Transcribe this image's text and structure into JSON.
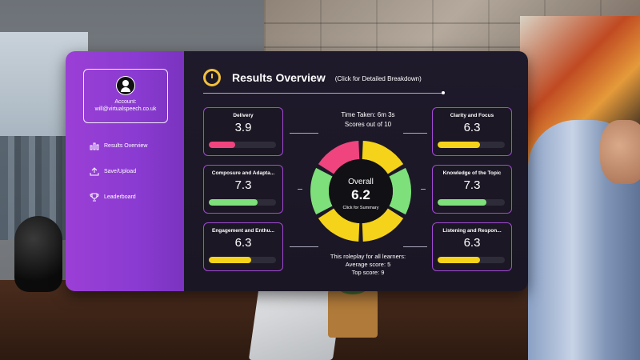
{
  "panel": {
    "account": {
      "label": "Account:",
      "email": "will@virtualspeech.co.uk"
    },
    "nav": [
      {
        "label": "Results Overview",
        "icon": "bar-chart-icon"
      },
      {
        "label": "Save/Upload",
        "icon": "upload-icon"
      },
      {
        "label": "Leaderboard",
        "icon": "trophy-icon"
      }
    ],
    "header": {
      "title": "Results Overview",
      "subtitle": "(Click for Detailed Breakdown)",
      "icon": "stopwatch-icon"
    },
    "summary": {
      "time_taken": "Time Taken: 6m 3s",
      "scores_out_of": "Scores out of 10"
    },
    "overall": {
      "label": "Overall",
      "value": "6.2",
      "link": "Click for Summary"
    },
    "footer": {
      "line1": "This roleplay for all learners:",
      "line2": "Average score: 5",
      "line3": "Top score: 9"
    },
    "cards": [
      {
        "title": "Delivery",
        "value": "3.9",
        "fraction": 0.39,
        "color": "#f0447f"
      },
      {
        "title": "Composure and Adapta...",
        "value": "7.3",
        "fraction": 0.73,
        "color": "#7ee07a"
      },
      {
        "title": "Engagement and Enthu...",
        "value": "6.3",
        "fraction": 0.63,
        "color": "#f5d31a"
      },
      {
        "title": "Clarity and Focus",
        "value": "6.3",
        "fraction": 0.63,
        "color": "#f5d31a"
      },
      {
        "title": "Knowledge of the Topic",
        "value": "7.3",
        "fraction": 0.73,
        "color": "#7ee07a"
      },
      {
        "title": "Listening and Respon...",
        "value": "6.3",
        "fraction": 0.63,
        "color": "#f5d31a"
      }
    ],
    "colors": {
      "accent_purple": "#9b3fd6",
      "panel_dark": "#1f1a2b",
      "red": "#f0447f",
      "green": "#7ee07a",
      "yellow": "#f5d31a"
    }
  }
}
